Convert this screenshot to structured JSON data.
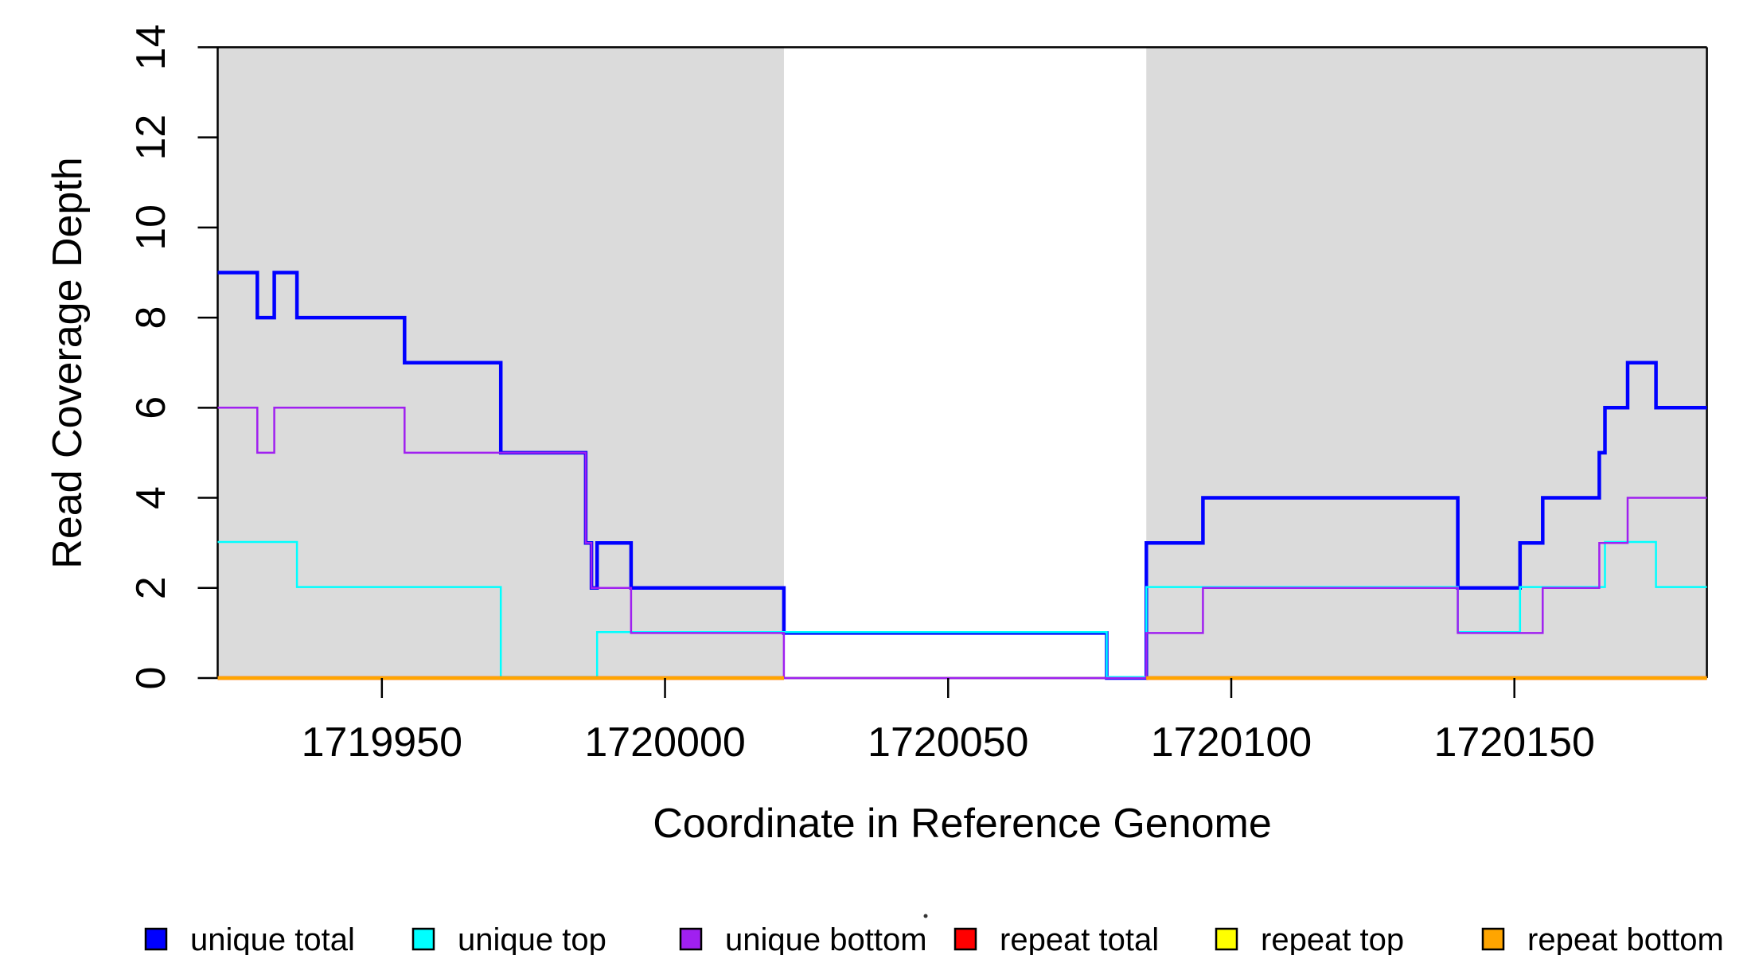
{
  "figure": {
    "xlabel": "Coordinate in Reference Genome",
    "ylabel": "Read Coverage Depth"
  },
  "chart_data": {
    "type": "line",
    "subtype": "step-coverage",
    "title": "",
    "xlabel": "Coordinate in Reference Genome",
    "ylabel": "Read Coverage Depth",
    "xlim": [
      1719921,
      1720184
    ],
    "ylim": [
      0,
      14
    ],
    "x_ticks": [
      1719950,
      1720000,
      1720050,
      1720100,
      1720150
    ],
    "y_ticks": [
      0,
      2,
      4,
      6,
      8,
      10,
      12,
      14
    ],
    "grid": false,
    "legend_position": "bottom",
    "shade_color": "#DBDBDB",
    "frame_color": "#000000",
    "shaded_regions": [
      {
        "name": "repeat-region-1",
        "x0": 1719921,
        "x1": 1720021
      },
      {
        "name": "repeat-region-2",
        "x0": 1720085,
        "x1": 1720184
      }
    ],
    "series": [
      {
        "name": "unique total",
        "color": "#0000FF",
        "width": 4.5,
        "paths": [
          [
            [
              1719921,
              9
            ],
            [
              1719928,
              8
            ],
            [
              1719931,
              9
            ],
            [
              1719935,
              8
            ],
            [
              1719954,
              7
            ],
            [
              1719971,
              5
            ],
            [
              1719986,
              3
            ],
            [
              1719987,
              2
            ],
            [
              1719988,
              3
            ],
            [
              1719994,
              2
            ],
            [
              1720021,
              1
            ],
            [
              1720078,
              0
            ],
            [
              1720085,
              3
            ],
            [
              1720095,
              4
            ],
            [
              1720140,
              2
            ],
            [
              1720151,
              3
            ],
            [
              1720155,
              4
            ],
            [
              1720165,
              5
            ],
            [
              1720166,
              6
            ],
            [
              1720170,
              7
            ],
            [
              1720175,
              6
            ],
            [
              1720184,
              6
            ]
          ]
        ]
      },
      {
        "name": "unique top",
        "color": "#00FFFF",
        "width": 2.5,
        "paths": [
          [
            [
              1719921,
              3
            ],
            [
              1719935,
              2
            ],
            [
              1719971,
              0
            ],
            [
              1719988,
              1
            ],
            [
              1720078,
              0
            ],
            [
              1720085,
              2
            ],
            [
              1720140,
              1
            ],
            [
              1720151,
              2
            ],
            [
              1720166,
              3
            ],
            [
              1720175,
              2
            ],
            [
              1720184,
              2
            ]
          ]
        ]
      },
      {
        "name": "unique bottom",
        "color": "#A020F0",
        "width": 2.5,
        "paths": [
          [
            [
              1719921,
              6
            ],
            [
              1719928,
              5
            ],
            [
              1719931,
              6
            ],
            [
              1719954,
              5
            ],
            [
              1719986,
              3
            ],
            [
              1719987,
              2
            ],
            [
              1719994,
              1
            ],
            [
              1720021,
              0
            ],
            [
              1720085,
              1
            ],
            [
              1720095,
              2
            ],
            [
              1720140,
              1
            ],
            [
              1720155,
              2
            ],
            [
              1720165,
              3
            ],
            [
              1720170,
              4
            ],
            [
              1720184,
              4
            ]
          ]
        ]
      },
      {
        "name": "repeat total",
        "color": "#FF0000",
        "width": 4.5,
        "paths": [
          [
            [
              1719921,
              0
            ],
            [
              1720021,
              0
            ]
          ],
          [
            [
              1720085,
              0
            ],
            [
              1720184,
              0
            ]
          ]
        ]
      },
      {
        "name": "repeat top",
        "color": "#FFFF00",
        "width": 2.5,
        "paths": [
          [
            [
              1719921,
              0
            ],
            [
              1720021,
              0
            ]
          ],
          [
            [
              1720085,
              0
            ],
            [
              1720184,
              0
            ]
          ]
        ]
      },
      {
        "name": "repeat bottom",
        "color": "#FFA500",
        "width": 4.5,
        "paths": [
          [
            [
              1719921,
              0
            ],
            [
              1720021,
              0
            ]
          ],
          [
            [
              1720085,
              0
            ],
            [
              1720184,
              0
            ]
          ]
        ]
      }
    ]
  },
  "legend": {
    "items": [
      {
        "label": "unique total",
        "color": "#0000FF"
      },
      {
        "label": "unique top",
        "color": "#00FFFF"
      },
      {
        "label": "unique bottom",
        "color": "#A020F0"
      },
      {
        "label": "repeat total",
        "color": "#FF0000"
      },
      {
        "label": "repeat top",
        "color": "#FFFF00"
      },
      {
        "label": "repeat bottom",
        "color": "#FFA500"
      }
    ],
    "artifact": "·"
  }
}
